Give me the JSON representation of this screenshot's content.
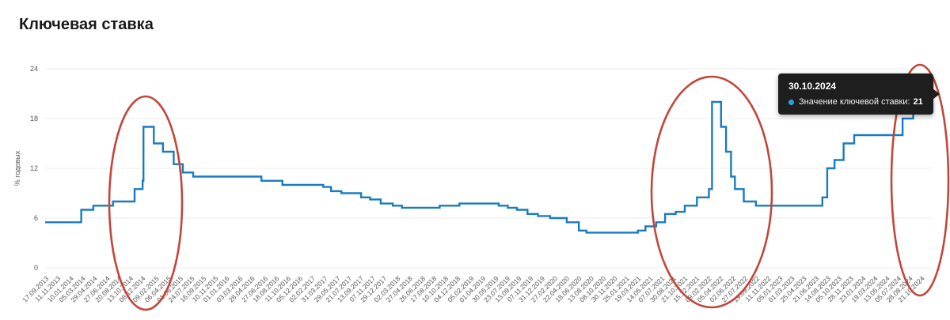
{
  "page": {
    "title": "Ключевая ставка"
  },
  "tooltip": {
    "date": "30.10.2024",
    "label": "Значение ключевой ставки:",
    "value": "21",
    "bg_color": "#1e1e1e",
    "bullet_color": "#2aa0de"
  },
  "chart_data": {
    "type": "line",
    "line_style": "step-after",
    "title": "Ключевая ставка",
    "xlabel": "",
    "ylabel": "% годовых",
    "ylim": [
      0,
      24
    ],
    "yticks": [
      0,
      6,
      12,
      18,
      24
    ],
    "grid": true,
    "legend": "none",
    "line_color": "#1a7bc0",
    "grid_color": "#ececec",
    "axis_text_color": "#555555",
    "x_start": "17.09.2013",
    "x_end": "30.10.2024",
    "x_tick_labels": [
      "17.09.2013",
      "11.11.2013",
      "10.01.2014",
      "05.03.2014",
      "29.04.2014",
      "27.06.2014",
      "20.08.2014",
      "13.10.2014",
      "08.12.2014",
      "09.02.2015",
      "06.04.2015",
      "01.06.2015",
      "24.07.2015",
      "16.09.2015",
      "10.11.2015",
      "01.01.2016",
      "03.03.2016",
      "28.04.2016",
      "27.06.2016",
      "18.08.2016",
      "11.10.2016",
      "05.12.2016",
      "02.02.2017",
      "31.03.2017",
      "29.05.2017",
      "21.07.2017",
      "13.09.2017",
      "07.11.2017",
      "29.12.2017",
      "02.03.2018",
      "27.04.2018",
      "26.06.2018",
      "17.08.2018",
      "10.10.2018",
      "04.12.2018",
      "05.02.2019",
      "01.04.2019",
      "30.05.2019",
      "23.07.2019",
      "13.09.2019",
      "07.11.2019",
      "31.12.2019",
      "27.02.2020",
      "22.04.2020",
      "18.06.2020",
      "13.08.2020",
      "08.10.2020",
      "30.11.2020",
      "25.01.2021",
      "19.03.2021",
      "14.05.2021",
      "07.07.2021",
      "30.08.2021",
      "21.10.2021",
      "15.12.2021",
      "09.02.2022",
      "05.04.2022",
      "02.06.2022",
      "27.07.2022",
      "19.09.2022",
      "11.11.2022",
      "05.01.2023",
      "01.03.2023",
      "25.04.2023",
      "21.06.2023",
      "14.08.2023",
      "05.10.2023",
      "28.11.2023",
      "23.01.2024",
      "19.03.2024",
      "13.05.2024",
      "05.07.2024",
      "28.08.2024",
      "21.10.2024"
    ],
    "series": [
      {
        "name": "Значение ключевой ставки",
        "points": [
          [
            "17.09.2013",
            5.5
          ],
          [
            "03.03.2014",
            7
          ],
          [
            "28.04.2014",
            7.5
          ],
          [
            "28.07.2014",
            8
          ],
          [
            "05.11.2014",
            9.5
          ],
          [
            "12.12.2014",
            10.5
          ],
          [
            "16.12.2014",
            17
          ],
          [
            "02.02.2015",
            15
          ],
          [
            "16.03.2015",
            14
          ],
          [
            "05.05.2015",
            12.5
          ],
          [
            "16.06.2015",
            11.5
          ],
          [
            "03.08.2015",
            11
          ],
          [
            "14.06.2016",
            10.5
          ],
          [
            "19.09.2016",
            10
          ],
          [
            "27.03.2017",
            9.75
          ],
          [
            "02.05.2017",
            9.25
          ],
          [
            "19.06.2017",
            9
          ],
          [
            "18.09.2017",
            8.5
          ],
          [
            "30.10.2017",
            8.25
          ],
          [
            "18.12.2017",
            7.75
          ],
          [
            "12.02.2018",
            7.5
          ],
          [
            "26.03.2018",
            7.25
          ],
          [
            "17.09.2018",
            7.5
          ],
          [
            "17.12.2018",
            7.75
          ],
          [
            "17.06.2019",
            7.5
          ],
          [
            "29.07.2019",
            7.25
          ],
          [
            "09.09.2019",
            7
          ],
          [
            "28.10.2019",
            6.5
          ],
          [
            "16.12.2019",
            6.25
          ],
          [
            "10.02.2020",
            6
          ],
          [
            "27.04.2020",
            5.5
          ],
          [
            "22.06.2020",
            4.5
          ],
          [
            "27.07.2020",
            4.25
          ],
          [
            "22.03.2021",
            4.5
          ],
          [
            "26.04.2021",
            5
          ],
          [
            "15.06.2021",
            5.5
          ],
          [
            "26.07.2021",
            6.5
          ],
          [
            "13.09.2021",
            6.75
          ],
          [
            "25.10.2021",
            7.5
          ],
          [
            "20.12.2021",
            8.5
          ],
          [
            "14.02.2022",
            9.5
          ],
          [
            "28.02.2022",
            20
          ],
          [
            "11.04.2022",
            17
          ],
          [
            "04.05.2022",
            14
          ],
          [
            "27.05.2022",
            11
          ],
          [
            "14.06.2022",
            9.5
          ],
          [
            "25.07.2022",
            8
          ],
          [
            "19.09.2022",
            7.5
          ],
          [
            "24.07.2023",
            8.5
          ],
          [
            "15.08.2023",
            12
          ],
          [
            "18.09.2023",
            13
          ],
          [
            "30.10.2023",
            15
          ],
          [
            "18.12.2023",
            16
          ],
          [
            "29.07.2024",
            18
          ],
          [
            "16.09.2024",
            19
          ],
          [
            "28.10.2024",
            21
          ]
        ]
      }
    ],
    "end_marker": {
      "date": "30.10.2024",
      "value": 21,
      "dot_color": "#1274bd",
      "halo_color": "#b5d7ee"
    },
    "annotations": {
      "color": "#c2463b",
      "ellipses": [
        {
          "cx": 184,
          "cy": 257,
          "rx": 46,
          "ry": 135
        },
        {
          "cx": 899,
          "cy": 243,
          "rx": 76,
          "ry": 146
        },
        {
          "cx": 1162,
          "cy": 228,
          "rx": 36,
          "ry": 146
        }
      ]
    }
  }
}
